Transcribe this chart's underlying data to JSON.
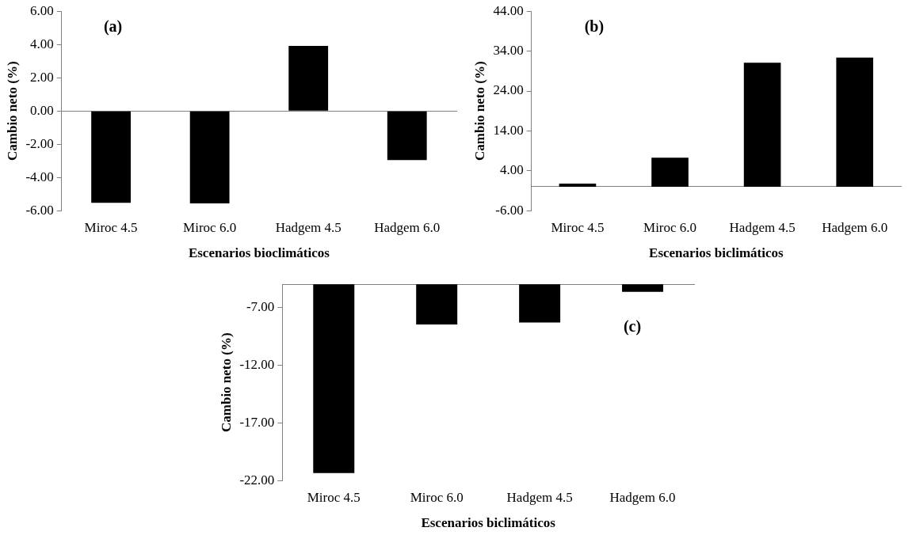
{
  "chart_data": [
    {
      "type": "bar",
      "annotations": [
        "(a)"
      ],
      "xlabel": "Escenarios bioclimáticos",
      "ylabel": "Cambio neto (%)",
      "categories": [
        "Miroc 4.5",
        "Miroc 6.0",
        "Hadgem 4.5",
        "Hadgem 6.0"
      ],
      "values": [
        -5.53,
        -5.56,
        3.91,
        -2.95
      ],
      "color": "#000000",
      "ylim": [
        -6,
        6
      ],
      "yticks": [
        {
          "value": -6,
          "label": "-6.00"
        },
        {
          "value": -4,
          "label": "-4.00"
        },
        {
          "value": -2,
          "label": "-2.00"
        },
        {
          "value": 0,
          "label": "0.00"
        },
        {
          "value": 2,
          "label": "2.00"
        },
        {
          "value": 4,
          "label": "4.00"
        },
        {
          "value": 6,
          "label": "6.00"
        }
      ],
      "legend": false
    },
    {
      "type": "bar",
      "annotations": [
        "(b)"
      ],
      "xlabel": "Escenarios biclimáticos",
      "ylabel": "Cambio neto (%)",
      "categories": [
        "Miroc 4.5",
        "Miroc 6.0",
        "Hadgem 4.5",
        "Hadgem 6.0"
      ],
      "values": [
        0.8,
        7.3,
        31.1,
        32.4
      ],
      "color": "#000000",
      "ylim": [
        -6,
        44
      ],
      "yticks": [
        {
          "value": -6,
          "label": "-6.00"
        },
        {
          "value": 4,
          "label": "4.00"
        },
        {
          "value": 14,
          "label": "14.00"
        },
        {
          "value": 24,
          "label": "24.00"
        },
        {
          "value": 34,
          "label": "34.00"
        },
        {
          "value": 44,
          "label": "44.00"
        }
      ],
      "legend": false
    },
    {
      "type": "bar",
      "annotations": [
        "(c)"
      ],
      "xlabel": "Escenarios biclimáticos",
      "ylabel": "Cambio neto (%)",
      "categories": [
        "Miroc 4.5",
        "Miroc 6.0",
        "Hadgem 4.5",
        "Hadgem 6.0"
      ],
      "values": [
        -21.35,
        -8.48,
        -8.31,
        -5.66
      ],
      "color": "#000000",
      "ylim": [
        -22,
        -5
      ],
      "yticks": [
        {
          "value": -22,
          "label": "-22.00"
        },
        {
          "value": -17,
          "label": "-17.00"
        },
        {
          "value": -12,
          "label": "-12.00"
        },
        {
          "value": -7,
          "label": "-7.00"
        }
      ],
      "legend": false
    }
  ]
}
